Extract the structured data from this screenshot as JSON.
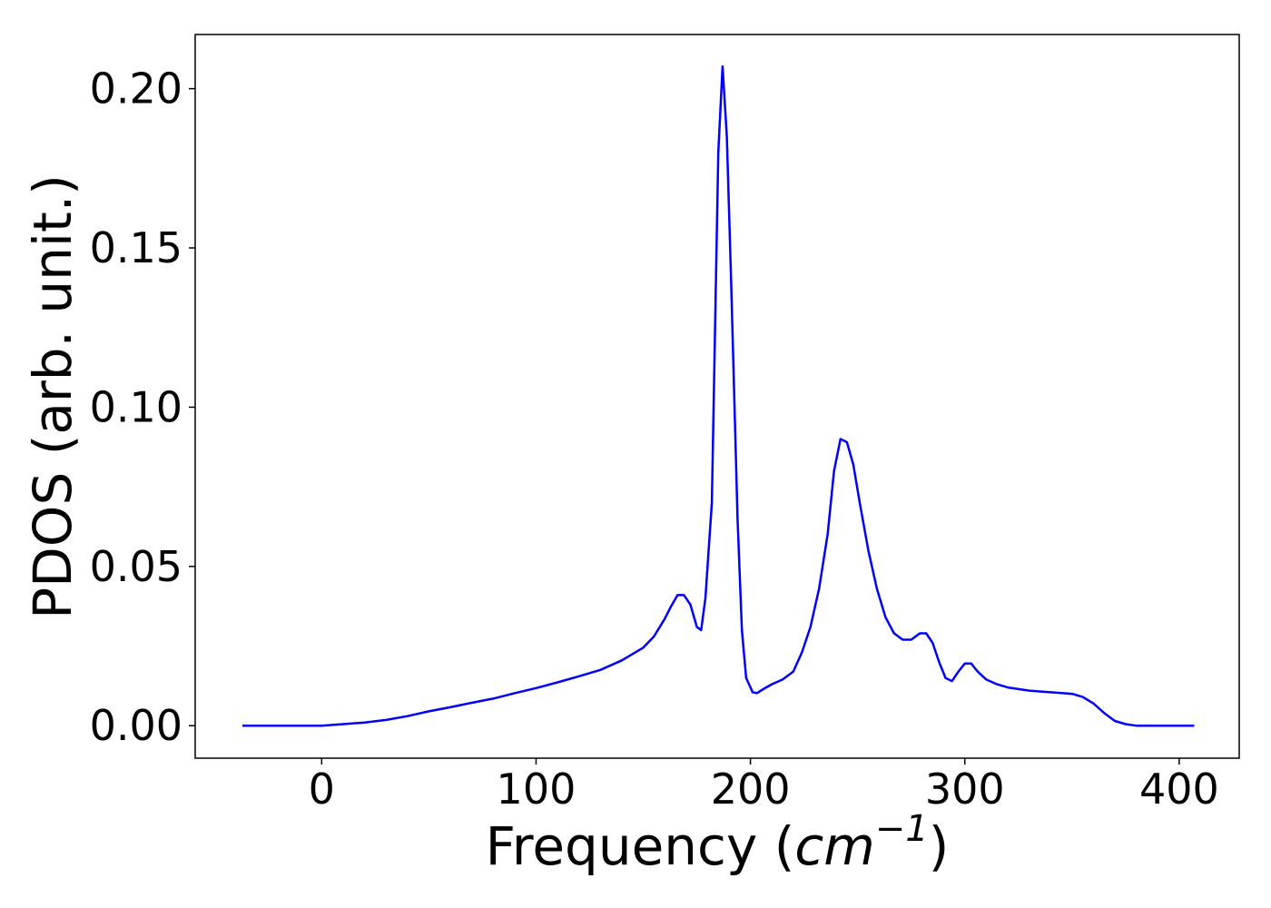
{
  "chart_data": {
    "type": "line",
    "title": "",
    "xlabel": "Frequency",
    "xlabel_unit_open": "(",
    "xlabel_unit_base": "cm",
    "xlabel_unit_exp": "−1",
    "xlabel_unit_close": ")",
    "ylabel": "PDOS (arb. unit.)",
    "xlim": [
      -59,
      428
    ],
    "ylim": [
      -0.0102,
      0.217
    ],
    "xticks": [
      0,
      100,
      200,
      300,
      400
    ],
    "xtick_labels": [
      "0",
      "100",
      "200",
      "300",
      "400"
    ],
    "yticks": [
      0.0,
      0.05,
      0.1,
      0.15,
      0.2
    ],
    "ytick_labels": [
      "0.00",
      "0.05",
      "0.10",
      "0.15",
      "0.20"
    ],
    "grid": false,
    "series": [
      {
        "color": "#0000ff",
        "x": [
          -37,
          0,
          10,
          20,
          30,
          40,
          50,
          60,
          70,
          80,
          90,
          100,
          110,
          120,
          130,
          140,
          150,
          155,
          160,
          163,
          166,
          169,
          172,
          175,
          177,
          179,
          182,
          185,
          187,
          189,
          191,
          194,
          196,
          198,
          201,
          203,
          206,
          210,
          215,
          220,
          224,
          228,
          232,
          236,
          239,
          242,
          245,
          248,
          251,
          255,
          259,
          263,
          267,
          271,
          275,
          279,
          282,
          285,
          288,
          291,
          294,
          297,
          300,
          303,
          306,
          310,
          315,
          320,
          330,
          340,
          350,
          355,
          360,
          365,
          370,
          375,
          380,
          390,
          407
        ],
        "y": [
          0.0,
          0.0,
          0.0005,
          0.001,
          0.0018,
          0.003,
          0.0045,
          0.0058,
          0.0072,
          0.0085,
          0.0102,
          0.0118,
          0.0136,
          0.0155,
          0.0175,
          0.0205,
          0.0245,
          0.028,
          0.0335,
          0.0375,
          0.041,
          0.041,
          0.038,
          0.031,
          0.03,
          0.04,
          0.07,
          0.18,
          0.207,
          0.185,
          0.14,
          0.065,
          0.03,
          0.015,
          0.0105,
          0.0102,
          0.0115,
          0.013,
          0.0145,
          0.017,
          0.023,
          0.031,
          0.043,
          0.06,
          0.08,
          0.09,
          0.089,
          0.082,
          0.07,
          0.055,
          0.043,
          0.034,
          0.029,
          0.027,
          0.027,
          0.029,
          0.029,
          0.026,
          0.02,
          0.015,
          0.014,
          0.017,
          0.0195,
          0.0195,
          0.017,
          0.0145,
          0.013,
          0.012,
          0.011,
          0.0105,
          0.01,
          0.009,
          0.007,
          0.004,
          0.0015,
          0.0005,
          0.0,
          0.0,
          0.0
        ]
      }
    ]
  }
}
